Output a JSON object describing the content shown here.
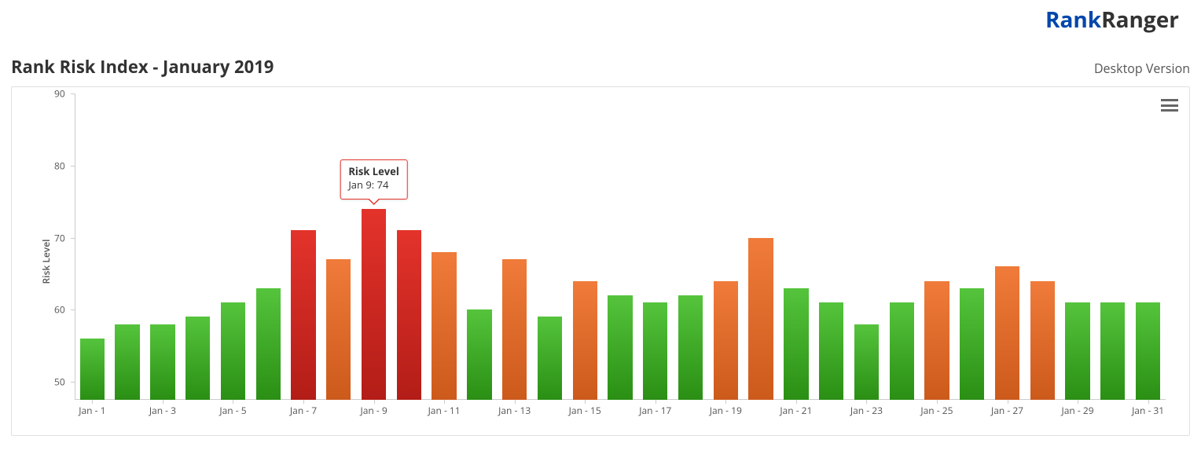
{
  "logo": {
    "part1": "Rank",
    "part2": "Ranger",
    "color_part1": "#0047ab",
    "color_part2": "#333333",
    "font_size": 28
  },
  "title": "Rank Risk Index - January 2019",
  "version_label": "Desktop Version",
  "chart": {
    "type": "bar",
    "y_axis_label": "Risk Level",
    "ylim": [
      47.5,
      90
    ],
    "yticks": [
      50,
      60,
      70,
      80,
      90
    ],
    "xticks": [
      "Jan - 1",
      "Jan - 3",
      "Jan - 5",
      "Jan - 7",
      "Jan - 9",
      "Jan - 11",
      "Jan - 13",
      "Jan - 15",
      "Jan - 17",
      "Jan - 19",
      "Jan - 21",
      "Jan - 23",
      "Jan - 25",
      "Jan - 27",
      "Jan - 29",
      "Jan - 31"
    ],
    "xtick_step": 2,
    "axis_color": "#cccccc",
    "tick_text_color": "#555555",
    "background_color": "#ffffff",
    "border_color": "#e0e0e0",
    "bar_width_ratio": 0.7,
    "bar_gradient": {
      "green": [
        "#55c43c",
        "#2a8f14"
      ],
      "orange": [
        "#f07b3a",
        "#cc5a1b"
      ],
      "red": [
        "#e3332b",
        "#b31d17"
      ]
    },
    "categories": [
      "Jan 1",
      "Jan 2",
      "Jan 3",
      "Jan 4",
      "Jan 5",
      "Jan 6",
      "Jan 7",
      "Jan 8",
      "Jan 9",
      "Jan 10",
      "Jan 11",
      "Jan 12",
      "Jan 13",
      "Jan 14",
      "Jan 15",
      "Jan 16",
      "Jan 17",
      "Jan 18",
      "Jan 19",
      "Jan 20",
      "Jan 21",
      "Jan 22",
      "Jan 23",
      "Jan 24",
      "Jan 25",
      "Jan 26",
      "Jan 27",
      "Jan 28",
      "Jan 29",
      "Jan 30",
      "Jan 31"
    ],
    "values": [
      56,
      58,
      58,
      59,
      61,
      63,
      71,
      67,
      74,
      71,
      68,
      60,
      67,
      59,
      64,
      62,
      61,
      62,
      64,
      70,
      63,
      61,
      58,
      61,
      64,
      63,
      66,
      64,
      61,
      61,
      61
    ],
    "colors": [
      "green",
      "green",
      "green",
      "green",
      "green",
      "green",
      "red",
      "orange",
      "red",
      "red",
      "orange",
      "green",
      "orange",
      "green",
      "orange",
      "green",
      "green",
      "green",
      "orange",
      "orange",
      "green",
      "green",
      "green",
      "green",
      "orange",
      "green",
      "orange",
      "orange",
      "green",
      "green",
      "green"
    ],
    "tooltip": {
      "bar_index": 8,
      "title": "Risk Level",
      "value_label": "Jan 9: 74",
      "border_color": "#e3332b",
      "text_color": "#333333"
    }
  }
}
